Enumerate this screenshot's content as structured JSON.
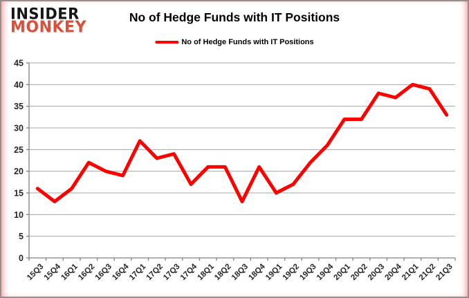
{
  "logo": {
    "line1": "INSIDER",
    "line2": "MONKEY"
  },
  "header": {
    "title": "No of Hedge Funds with IT Positions"
  },
  "legend": {
    "label": "No of Hedge Funds with IT Positions",
    "color": "#fe0000"
  },
  "colors": {
    "series_line": "#fe0000",
    "gridline": "#a6a6a6",
    "axis": "#808080",
    "tick_label": "#262626",
    "logo_accent": "#d9503c",
    "frame_border": "#909090"
  },
  "chart_data": {
    "type": "line",
    "title": "No of Hedge Funds with IT Positions",
    "categories": [
      "15Q3",
      "15Q4",
      "16Q1",
      "16Q2",
      "16Q3",
      "16Q4",
      "17Q1",
      "17Q2",
      "17Q3",
      "17Q4",
      "18Q1",
      "18Q2",
      "18Q3",
      "18Q4",
      "19Q1",
      "19Q2",
      "19Q3",
      "19Q4",
      "20Q1",
      "20Q2",
      "20Q3",
      "20Q4",
      "21Q1",
      "21Q2",
      "21Q3"
    ],
    "series": [
      {
        "name": "No of Hedge Funds with IT Positions",
        "color": "#fe0000",
        "values": [
          16,
          13,
          16,
          22,
          20,
          19,
          27,
          23,
          24,
          17,
          21,
          21,
          13,
          21,
          15,
          17,
          22,
          26,
          32,
          32,
          38,
          37,
          40,
          39,
          33
        ]
      }
    ],
    "xlabel": "",
    "ylabel": "",
    "ylim": [
      0,
      45
    ],
    "yticks": [
      0,
      5,
      10,
      15,
      20,
      25,
      30,
      35,
      40,
      45
    ],
    "grid": "horizontal",
    "legend_position": "top"
  }
}
